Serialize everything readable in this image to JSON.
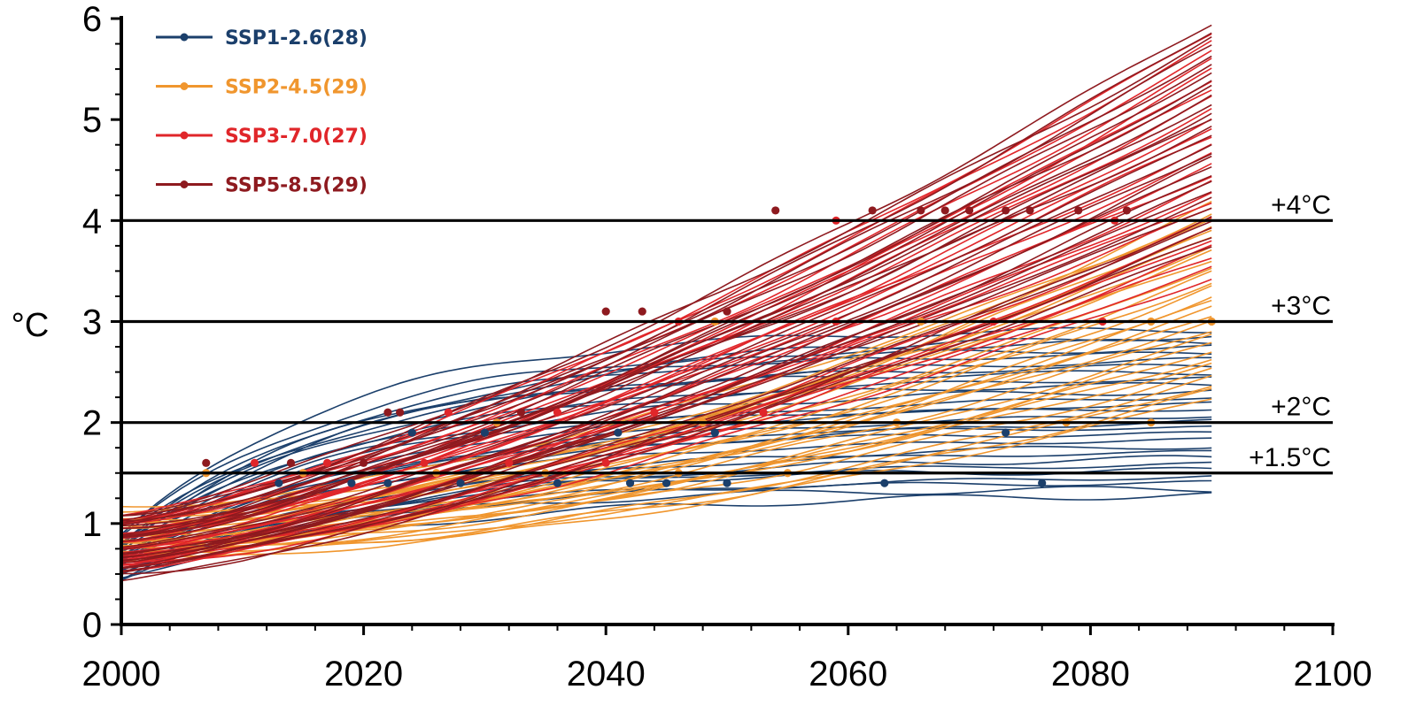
{
  "chart_data": {
    "type": "line",
    "title": "",
    "xlabel": "",
    "ylabel": "°C",
    "xlim": [
      2000,
      2100
    ],
    "ylim": [
      0,
      6
    ],
    "x_ticks": [
      "2000",
      "2020",
      "2040",
      "2060",
      "2080",
      "2100"
    ],
    "y_ticks": [
      "0",
      "1",
      "2",
      "3",
      "4",
      "5",
      "6"
    ],
    "grid": false,
    "legend_position": "top-left",
    "thresholds": [
      {
        "label": "+4°C",
        "value": 4.0
      },
      {
        "label": "+3°C",
        "value": 3.0
      },
      {
        "label": "+2°C",
        "value": 2.0
      },
      {
        "label": "+1.5°C",
        "value": 1.5
      }
    ],
    "series": [
      {
        "name": "SSP1-2.6(28)",
        "color": "#1b3f6b",
        "model_count": 28,
        "start_range": [
          0.35,
          1.0
        ],
        "end_range": [
          1.25,
          2.95
        ],
        "end_year": 2090,
        "crossing_points": [
          {
            "x": 2013,
            "y": 1.4
          },
          {
            "x": 2019,
            "y": 1.4
          },
          {
            "x": 2022,
            "y": 1.4
          },
          {
            "x": 2028,
            "y": 1.4
          },
          {
            "x": 2036,
            "y": 1.4
          },
          {
            "x": 2042,
            "y": 1.4
          },
          {
            "x": 2045,
            "y": 1.4
          },
          {
            "x": 2050,
            "y": 1.4
          },
          {
            "x": 2063,
            "y": 1.4
          },
          {
            "x": 2076,
            "y": 1.4
          },
          {
            "x": 2024,
            "y": 1.9
          },
          {
            "x": 2030,
            "y": 1.9
          },
          {
            "x": 2041,
            "y": 1.9
          },
          {
            "x": 2049,
            "y": 1.9
          },
          {
            "x": 2073,
            "y": 1.9
          }
        ]
      },
      {
        "name": "SSP2-4.5(29)",
        "color": "#f0962e",
        "model_count": 29,
        "start_range": [
          0.55,
          1.2
        ],
        "end_range": [
          2.2,
          4.2
        ],
        "end_year": 2090,
        "crossing_points": [
          {
            "x": 2007,
            "y": 1.5
          },
          {
            "x": 2015,
            "y": 1.5
          },
          {
            "x": 2026,
            "y": 1.5
          },
          {
            "x": 2035,
            "y": 1.5
          },
          {
            "x": 2046,
            "y": 1.5
          },
          {
            "x": 2055,
            "y": 1.5
          },
          {
            "x": 2031,
            "y": 2.0
          },
          {
            "x": 2048,
            "y": 2.0
          },
          {
            "x": 2064,
            "y": 2.0
          },
          {
            "x": 2078,
            "y": 2.0
          },
          {
            "x": 2085,
            "y": 2.0
          },
          {
            "x": 2049,
            "y": 3.0
          },
          {
            "x": 2066,
            "y": 3.0
          },
          {
            "x": 2085,
            "y": 3.0
          },
          {
            "x": 2090,
            "y": 3.0
          }
        ]
      },
      {
        "name": "SSP3-7.0(27)",
        "color": "#e0262a",
        "model_count": 27,
        "start_range": [
          0.45,
          1.1
        ],
        "end_range": [
          3.4,
          5.9
        ],
        "end_year": 2090,
        "crossing_points": [
          {
            "x": 2011,
            "y": 1.6
          },
          {
            "x": 2017,
            "y": 1.6
          },
          {
            "x": 2025,
            "y": 1.6
          },
          {
            "x": 2032,
            "y": 1.6
          },
          {
            "x": 2040,
            "y": 1.6
          },
          {
            "x": 2027,
            "y": 2.1
          },
          {
            "x": 2036,
            "y": 2.1
          },
          {
            "x": 2044,
            "y": 2.1
          },
          {
            "x": 2053,
            "y": 2.1
          },
          {
            "x": 2046,
            "y": 3.0
          },
          {
            "x": 2059,
            "y": 3.0
          },
          {
            "x": 2072,
            "y": 3.0
          },
          {
            "x": 2081,
            "y": 3.0
          },
          {
            "x": 2059,
            "y": 4.0
          },
          {
            "x": 2082,
            "y": 4.0
          }
        ]
      },
      {
        "name": "SSP5-8.5(29)",
        "color": "#8e1a1f",
        "model_count": 29,
        "start_range": [
          0.4,
          1.15
        ],
        "end_range": [
          3.7,
          6.0
        ],
        "end_year": 2090,
        "crossing_points": [
          {
            "x": 2007,
            "y": 1.6
          },
          {
            "x": 2014,
            "y": 1.6
          },
          {
            "x": 2020,
            "y": 1.6
          },
          {
            "x": 2022,
            "y": 2.1
          },
          {
            "x": 2023,
            "y": 2.1
          },
          {
            "x": 2033,
            "y": 2.1
          },
          {
            "x": 2040,
            "y": 3.1
          },
          {
            "x": 2043,
            "y": 3.1
          },
          {
            "x": 2050,
            "y": 3.1
          },
          {
            "x": 2054,
            "y": 4.1
          },
          {
            "x": 2062,
            "y": 4.1
          },
          {
            "x": 2066,
            "y": 4.1
          },
          {
            "x": 2068,
            "y": 4.1
          },
          {
            "x": 2070,
            "y": 4.1
          },
          {
            "x": 2073,
            "y": 4.1
          },
          {
            "x": 2075,
            "y": 4.1
          },
          {
            "x": 2079,
            "y": 4.1
          },
          {
            "x": 2083,
            "y": 4.1
          }
        ]
      }
    ]
  }
}
